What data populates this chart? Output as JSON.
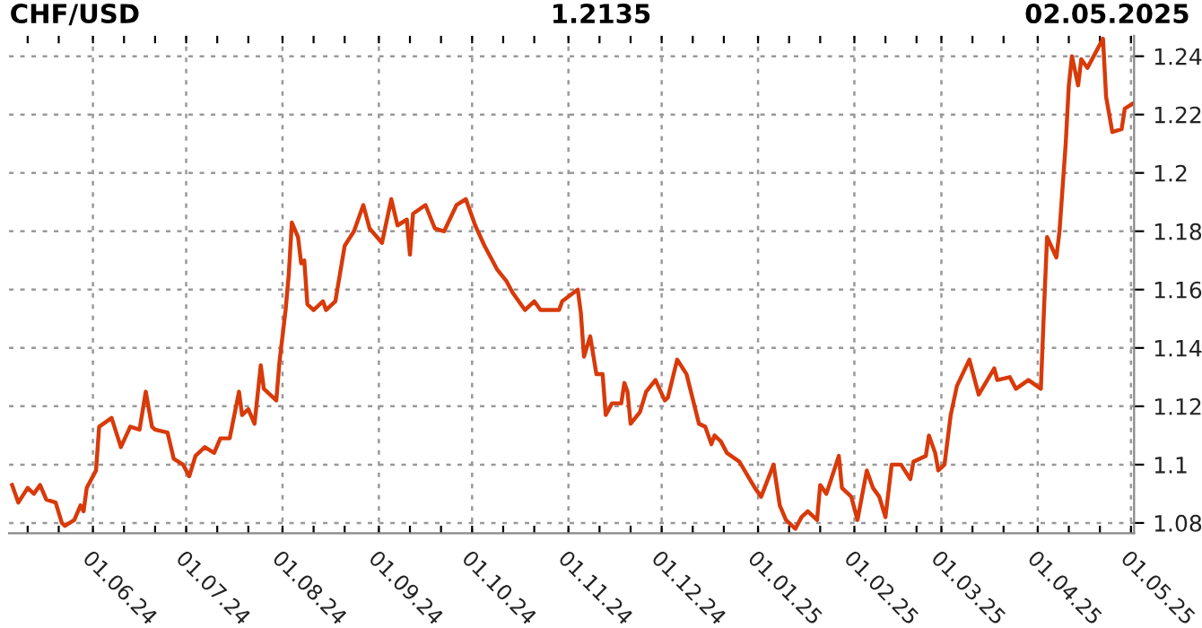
{
  "chart_data": {
    "type": "line",
    "title": "CHF/USD",
    "annotations": [
      "1.2135",
      "02.05.2025"
    ],
    "x": [
      "2024-05-06",
      "2024-05-08",
      "2024-05-11",
      "2024-05-13",
      "2024-05-15",
      "2024-05-17",
      "2024-05-20",
      "2024-05-22",
      "2024-05-23",
      "2024-05-26",
      "2024-05-28",
      "2024-05-29",
      "2024-05-30",
      "2024-06-02",
      "2024-06-03",
      "2024-06-07",
      "2024-06-10",
      "2024-06-13",
      "2024-06-16",
      "2024-06-18",
      "2024-06-20",
      "2024-06-21",
      "2024-06-25",
      "2024-06-27",
      "2024-06-30",
      "2024-07-02",
      "2024-07-04",
      "2024-07-07",
      "2024-07-10",
      "2024-07-12",
      "2024-07-15",
      "2024-07-18",
      "2024-07-19",
      "2024-07-21",
      "2024-07-23",
      "2024-07-25",
      "2024-07-26",
      "2024-07-30",
      "2024-07-31",
      "2024-08-02",
      "2024-08-03",
      "2024-08-04",
      "2024-08-06",
      "2024-08-07",
      "2024-08-08",
      "2024-08-09",
      "2024-08-11",
      "2024-08-14",
      "2024-08-15",
      "2024-08-18",
      "2024-08-21",
      "2024-08-24",
      "2024-08-27",
      "2024-08-29",
      "2024-09-02",
      "2024-09-05",
      "2024-09-07",
      "2024-09-10",
      "2024-09-11",
      "2024-09-12",
      "2024-09-16",
      "2024-09-19",
      "2024-09-22",
      "2024-09-26",
      "2024-09-29",
      "2024-10-02",
      "2024-10-05",
      "2024-10-09",
      "2024-10-12",
      "2024-10-14",
      "2024-10-18",
      "2024-10-21",
      "2024-10-23",
      "2024-10-29",
      "2024-10-30",
      "2024-11-04",
      "2024-11-05",
      "2024-11-06",
      "2024-11-08",
      "2024-11-10",
      "2024-11-12",
      "2024-11-13",
      "2024-11-15",
      "2024-11-18",
      "2024-11-19",
      "2024-11-20",
      "2024-11-21",
      "2024-11-24",
      "2024-11-26",
      "2024-11-29",
      "2024-12-02",
      "2024-12-03",
      "2024-12-06",
      "2024-12-09",
      "2024-12-13",
      "2024-12-15",
      "2024-12-17",
      "2024-12-18",
      "2024-12-20",
      "2024-12-22",
      "2024-12-26",
      "2024-12-31",
      "2025-01-02",
      "2025-01-06",
      "2025-01-08",
      "2025-01-10",
      "2025-01-13",
      "2025-01-15",
      "2025-01-17",
      "2025-01-20",
      "2025-01-21",
      "2025-01-23",
      "2025-01-27",
      "2025-01-28",
      "2025-01-31",
      "2025-02-02",
      "2025-02-05",
      "2025-02-07",
      "2025-02-09",
      "2025-02-11",
      "2025-02-13",
      "2025-02-16",
      "2025-02-19",
      "2025-02-20",
      "2025-02-24",
      "2025-02-25",
      "2025-02-27",
      "2025-02-28",
      "2025-03-02",
      "2025-03-04",
      "2025-03-06",
      "2025-03-10",
      "2025-03-13",
      "2025-03-18",
      "2025-03-19",
      "2025-03-23",
      "2025-03-25",
      "2025-03-29",
      "2025-04-02",
      "2025-04-03",
      "2025-04-04",
      "2025-04-07",
      "2025-04-08",
      "2025-04-10",
      "2025-04-11",
      "2025-04-12",
      "2025-04-14",
      "2025-04-15",
      "2025-04-17",
      "2025-04-22",
      "2025-04-23",
      "2025-04-25",
      "2025-04-28",
      "2025-04-29",
      "2025-05-02"
    ],
    "series": [
      {
        "color": "#d83a0a",
        "values": [
          1.093,
          1.087,
          1.092,
          1.09,
          1.093,
          1.088,
          1.087,
          1.08,
          1.079,
          1.081,
          1.086,
          1.084,
          1.092,
          1.098,
          1.113,
          1.116,
          1.106,
          1.113,
          1.112,
          1.125,
          1.113,
          1.112,
          1.111,
          1.102,
          1.1,
          1.096,
          1.103,
          1.106,
          1.104,
          1.109,
          1.109,
          1.125,
          1.117,
          1.119,
          1.114,
          1.134,
          1.126,
          1.122,
          1.135,
          1.153,
          1.165,
          1.183,
          1.178,
          1.169,
          1.17,
          1.155,
          1.153,
          1.156,
          1.153,
          1.156,
          1.175,
          1.18,
          1.189,
          1.181,
          1.176,
          1.191,
          1.182,
          1.184,
          1.172,
          1.186,
          1.189,
          1.181,
          1.18,
          1.189,
          1.191,
          1.182,
          1.175,
          1.167,
          1.163,
          1.159,
          1.153,
          1.156,
          1.153,
          1.153,
          1.156,
          1.16,
          1.152,
          1.137,
          1.144,
          1.131,
          1.131,
          1.117,
          1.121,
          1.121,
          1.128,
          1.125,
          1.114,
          1.118,
          1.125,
          1.129,
          1.122,
          1.123,
          1.136,
          1.131,
          1.114,
          1.113,
          1.107,
          1.11,
          1.108,
          1.104,
          1.101,
          1.092,
          1.089,
          1.1,
          1.086,
          1.081,
          1.078,
          1.082,
          1.084,
          1.081,
          1.093,
          1.09,
          1.103,
          1.092,
          1.089,
          1.081,
          1.098,
          1.092,
          1.089,
          1.082,
          1.1,
          1.1,
          1.095,
          1.101,
          1.103,
          1.11,
          1.104,
          1.098,
          1.1,
          1.117,
          1.127,
          1.136,
          1.124,
          1.133,
          1.129,
          1.13,
          1.126,
          1.129,
          1.126,
          1.153,
          1.178,
          1.171,
          1.18,
          1.21,
          1.23,
          1.24,
          1.23,
          1.239,
          1.236,
          1.246,
          1.226,
          1.214,
          1.215,
          1.222,
          1.224
        ]
      }
    ],
    "xlim": [
      "2024-05-05",
      "2025-05-02"
    ],
    "xticks": [
      {
        "value": "2024-05-11",
        "label": null
      },
      {
        "value": "2024-05-21",
        "label": null
      },
      {
        "value": "2024-06-01",
        "label": "01.06.24"
      },
      {
        "value": "2024-06-11",
        "label": null
      },
      {
        "value": "2024-06-21",
        "label": null
      },
      {
        "value": "2024-07-01",
        "label": "01.07.24"
      },
      {
        "value": "2024-07-11",
        "label": null
      },
      {
        "value": "2024-07-21",
        "label": null
      },
      {
        "value": "2024-08-01",
        "label": "01.08.24"
      },
      {
        "value": "2024-08-11",
        "label": null
      },
      {
        "value": "2024-08-21",
        "label": null
      },
      {
        "value": "2024-09-01",
        "label": "01.09.24"
      },
      {
        "value": "2024-09-11",
        "label": null
      },
      {
        "value": "2024-09-21",
        "label": null
      },
      {
        "value": "2024-10-01",
        "label": "01.10.24"
      },
      {
        "value": "2024-10-11",
        "label": null
      },
      {
        "value": "2024-10-21",
        "label": null
      },
      {
        "value": "2024-11-01",
        "label": "01.11.24"
      },
      {
        "value": "2024-11-11",
        "label": null
      },
      {
        "value": "2024-11-21",
        "label": null
      },
      {
        "value": "2024-12-01",
        "label": "01.12.24"
      },
      {
        "value": "2024-12-11",
        "label": null
      },
      {
        "value": "2024-12-21",
        "label": null
      },
      {
        "value": "2025-01-01",
        "label": "01.01.25"
      },
      {
        "value": "2025-01-11",
        "label": null
      },
      {
        "value": "2025-01-21",
        "label": null
      },
      {
        "value": "2025-02-01",
        "label": "01.02.25"
      },
      {
        "value": "2025-02-11",
        "label": null
      },
      {
        "value": "2025-02-21",
        "label": null
      },
      {
        "value": "2025-03-01",
        "label": "01.03.25"
      },
      {
        "value": "2025-03-11",
        "label": null
      },
      {
        "value": "2025-03-21",
        "label": null
      },
      {
        "value": "2025-04-01",
        "label": "01.04.25"
      },
      {
        "value": "2025-04-11",
        "label": null
      },
      {
        "value": "2025-04-21",
        "label": null
      },
      {
        "value": "2025-05-01",
        "label": "01.05.25"
      }
    ],
    "ylim": [
      1.0765,
      1.247
    ],
    "yticks": [
      1.08,
      1.1,
      1.12,
      1.14,
      1.16,
      1.18,
      1.2,
      1.22,
      1.24
    ],
    "grid": true,
    "legend": false,
    "marker": "none",
    "line_style": "solid"
  }
}
